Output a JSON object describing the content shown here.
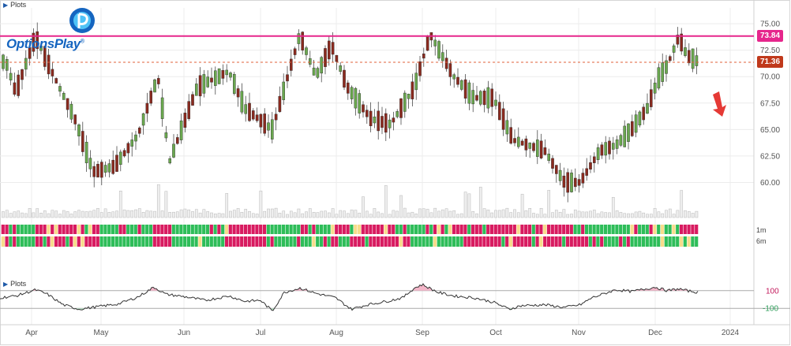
{
  "header": {
    "plots_label": "Plots"
  },
  "logo": {
    "text": "OptionsPlay",
    "trademark": "®"
  },
  "lower_panel": {
    "plots_label": "Plots"
  },
  "colors": {
    "up": "#6aa84f",
    "down": "#8b2a1f",
    "resistance": "#e6268c",
    "current_line": "#e0603a",
    "current_tag": "#c0391b",
    "red_strip": "#d81b60",
    "green_strip": "#2ebd59",
    "yellow_strip": "#f7dc8c",
    "arrow": "#e53935"
  },
  "strips": {
    "labels": [
      "1m",
      "6m"
    ]
  },
  "chart_data": [
    {
      "type": "candlestick",
      "title": "",
      "y_ticks": [
        "75.00",
        "72.50",
        "70.00",
        "67.50",
        "65.00",
        "62.50",
        "60.00"
      ],
      "ylim": [
        57.5,
        76.5
      ],
      "x_ticks": [
        "Apr",
        "May",
        "Jun",
        "Jul",
        "Aug",
        "Sep",
        "Oct",
        "Nov",
        "Dec",
        "2024"
      ],
      "resistance_level": "73.84",
      "current_price": "71.36",
      "grid": true
    },
    {
      "type": "line",
      "title": "",
      "y_ticks": [
        "100",
        "-100"
      ],
      "ylim": [
        -250,
        250
      ],
      "thresholds": [
        100,
        -100
      ]
    }
  ]
}
